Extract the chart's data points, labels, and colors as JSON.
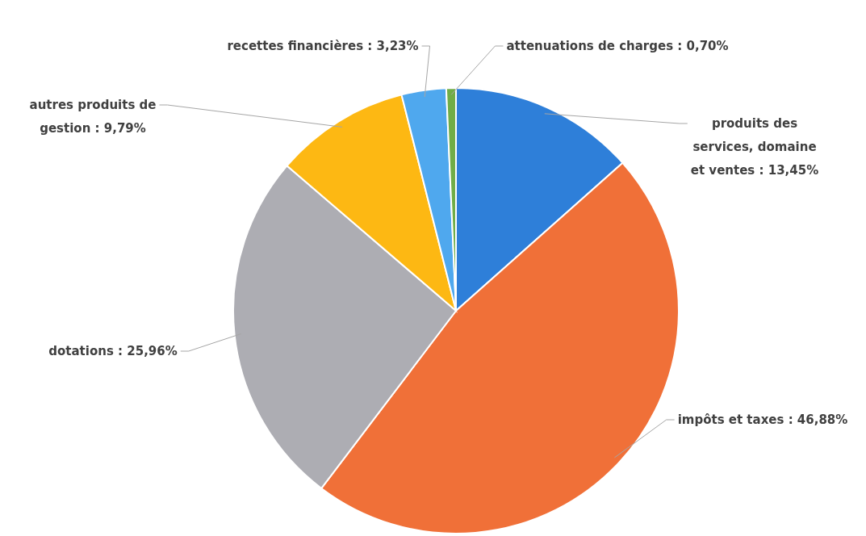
{
  "chart_data": {
    "type": "pie",
    "categories": [
      "produits des services, domaine et ventes",
      "impôts et taxes",
      "dotations",
      "autres produits de gestion",
      "recettes financières",
      "attenuations de charges"
    ],
    "values": [
      13.45,
      46.88,
      25.96,
      9.79,
      3.23,
      0.7
    ],
    "value_labels": [
      "13,45%",
      "46,88%",
      "25,96%",
      "9,79%",
      "3,23%",
      "0,70%"
    ],
    "colors": [
      "#2e7fd9",
      "#f07038",
      "#adadb3",
      "#fdb813",
      "#4fa8ee",
      "#70ad47"
    ]
  }
}
